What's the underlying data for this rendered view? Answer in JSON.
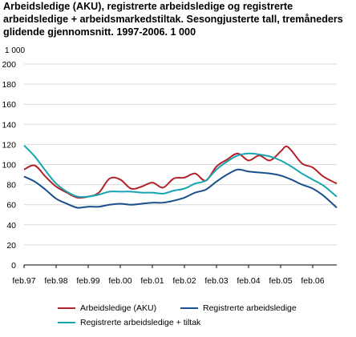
{
  "title": "Arbeidsledige (AKU), registrerte arbeidsledige og registrerte arbeidsledige + arbeidsmarkedstiltak. Sesongjusterte tall, tremåneders glidende gjennomsnitt. 1997-2006. 1 000",
  "chart_data": {
    "type": "line",
    "title": "Arbeidsledige (AKU), registrerte arbeidsledige og registrerte arbeidsledige + arbeidsmarkedstiltak. Sesongjusterte tall, tremåneders glidende gjennomsnitt. 1997-2006. 1 000",
    "unit_label": "1 000",
    "ylim": [
      0,
      200
    ],
    "yticks": [
      0,
      20,
      40,
      60,
      80,
      100,
      120,
      140,
      160,
      180,
      200
    ],
    "xticks": [
      "feb.97",
      "feb.98",
      "feb.99",
      "feb.00",
      "feb.01",
      "feb.02",
      "feb.03",
      "feb.04",
      "feb.05",
      "feb.06"
    ],
    "x_start": "feb.97",
    "x_end": "nov.06",
    "grid": "horizontal",
    "legend_position": "bottom",
    "series": [
      {
        "name": "Arbeidsledige (AKU)",
        "color": "#b2222a",
        "x": [
          "feb.97",
          "jun.97",
          "okt.97",
          "feb.98",
          "jun.98",
          "okt.98",
          "feb.99",
          "jun.99",
          "okt.99",
          "feb.00",
          "jun.00",
          "okt.00",
          "feb.01",
          "jun.01",
          "okt.01",
          "feb.02",
          "jun.02",
          "okt.02",
          "feb.03",
          "jun.03",
          "okt.03",
          "feb.04",
          "jun.04",
          "okt.04",
          "feb.05",
          "apr.05",
          "jun.05",
          "okt.05",
          "feb.06",
          "jun.06",
          "nov.06"
        ],
        "values": [
          95,
          99,
          88,
          78,
          72,
          67,
          68,
          72,
          86,
          85,
          76,
          78,
          82,
          77,
          86,
          87,
          91,
          84,
          98,
          105,
          111,
          104,
          109,
          104,
          113,
          118,
          114,
          101,
          97,
          88,
          81
        ]
      },
      {
        "name": "Registrerte arbeidsledige",
        "color": "#1a4f8c",
        "x": [
          "feb.97",
          "jun.97",
          "okt.97",
          "feb.98",
          "jun.98",
          "okt.98",
          "feb.99",
          "jun.99",
          "okt.99",
          "feb.00",
          "jun.00",
          "okt.00",
          "feb.01",
          "jun.01",
          "okt.01",
          "feb.02",
          "jun.02",
          "okt.02",
          "feb.03",
          "jun.03",
          "okt.03",
          "feb.04",
          "jun.04",
          "okt.04",
          "feb.05",
          "jun.05",
          "okt.05",
          "feb.06",
          "jun.06",
          "nov.06"
        ],
        "values": [
          88,
          83,
          75,
          66,
          61,
          57,
          58,
          58,
          60,
          61,
          60,
          61,
          62,
          62,
          64,
          67,
          72,
          75,
          83,
          90,
          95,
          93,
          92,
          91,
          89,
          85,
          80,
          76,
          69,
          57
        ]
      },
      {
        "name": "Registrerte arbeidsledige + tiltak",
        "color": "#17a5b0",
        "x": [
          "feb.97",
          "jun.97",
          "okt.97",
          "feb.98",
          "jun.98",
          "okt.98",
          "feb.99",
          "jun.99",
          "okt.99",
          "feb.00",
          "jun.00",
          "okt.00",
          "feb.01",
          "jun.01",
          "okt.01",
          "feb.02",
          "jun.02",
          "okt.02",
          "feb.03",
          "jun.03",
          "okt.03",
          "feb.04",
          "jun.04",
          "okt.04",
          "feb.05",
          "jun.05",
          "okt.05",
          "feb.06",
          "jun.06",
          "nov.06"
        ],
        "values": [
          119,
          108,
          94,
          81,
          73,
          68,
          68,
          70,
          73,
          73,
          73,
          72,
          72,
          71,
          74,
          76,
          81,
          84,
          95,
          103,
          109,
          111,
          110,
          108,
          104,
          98,
          91,
          85,
          79,
          68
        ]
      }
    ]
  },
  "legend": {
    "items": [
      {
        "label": "Arbeidsledige (AKU)",
        "color": "#b2222a"
      },
      {
        "label": "Registrerte arbeidsledige",
        "color": "#1a4f8c"
      },
      {
        "label": "Registrerte arbeidsledige + tiltak",
        "color": "#17a5b0"
      }
    ]
  }
}
